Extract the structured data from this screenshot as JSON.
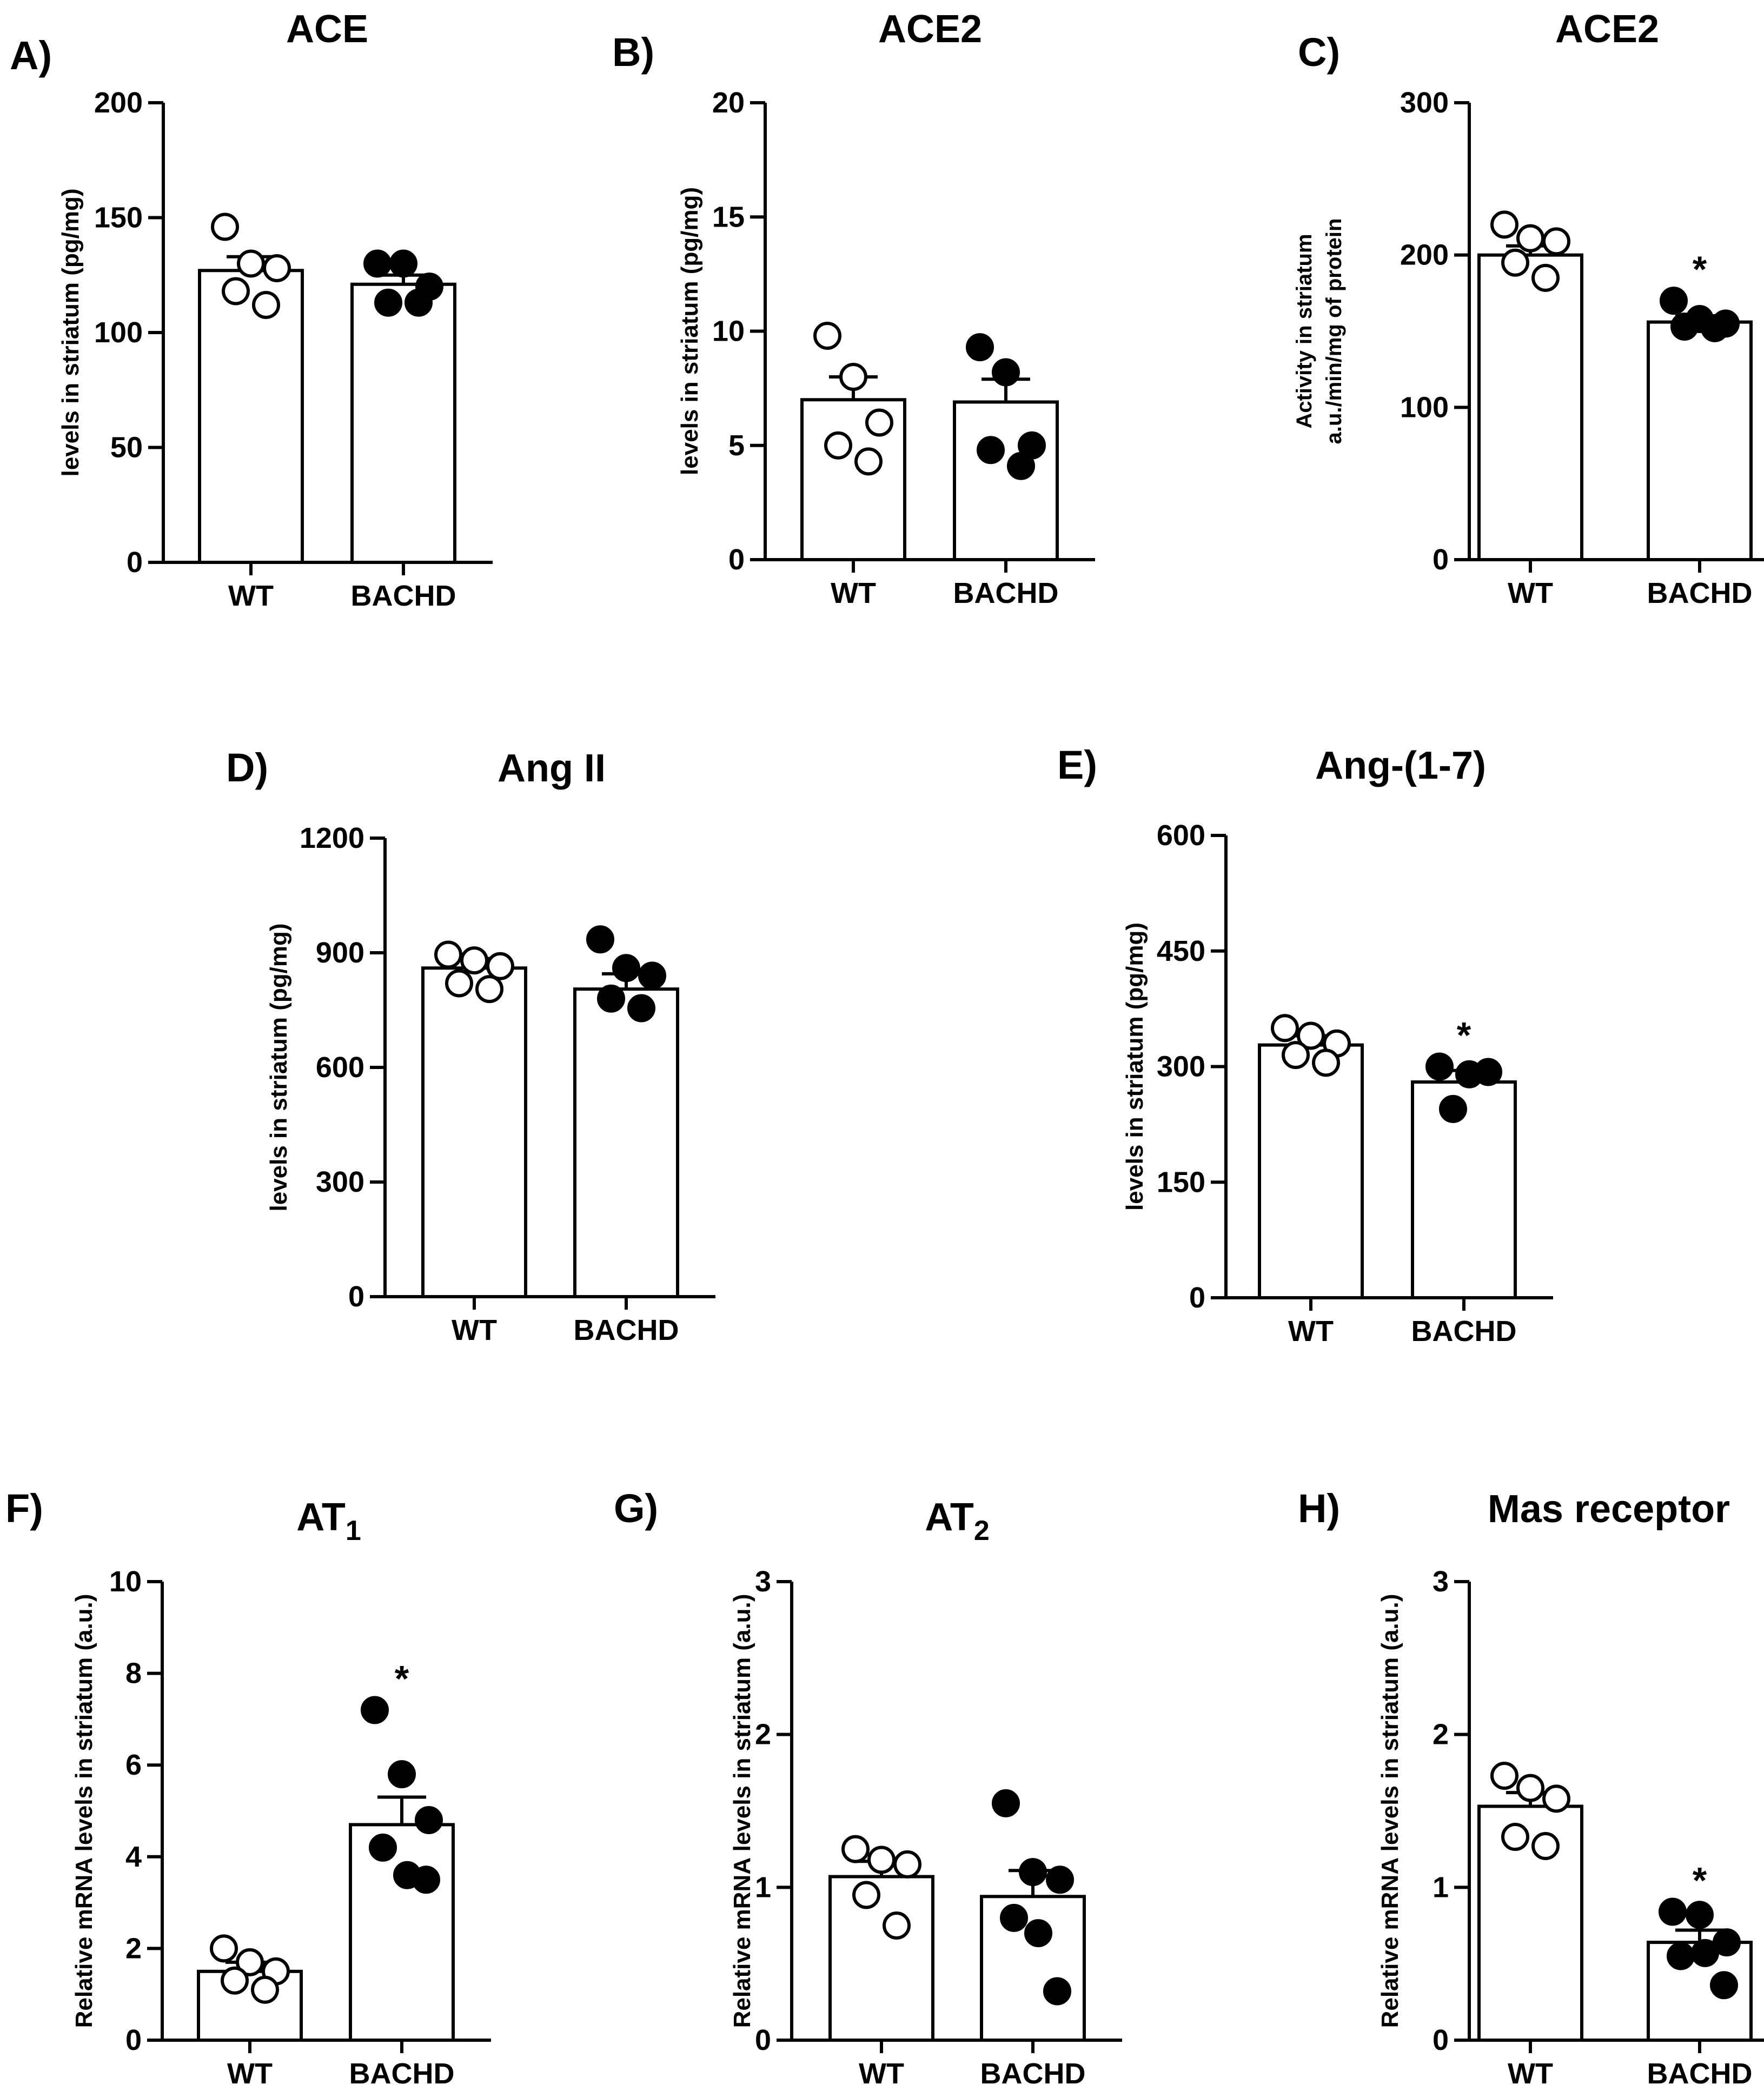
{
  "figure": {
    "description_hidden": false
  },
  "chart_data": [
    {
      "id": "A",
      "panel_label": "A)",
      "type": "bar",
      "title": "ACE",
      "title_sub": "",
      "ylabel": [
        "levels in striatum (pg/mg)"
      ],
      "categories": [
        "WT",
        "BACHD"
      ],
      "ylim": [
        0,
        200
      ],
      "yticks": [
        0,
        50,
        100,
        150,
        200
      ],
      "ytick_labels": [
        "0",
        "50",
        "100",
        "150",
        "200"
      ],
      "means": [
        127,
        121
      ],
      "sem": [
        6,
        4
      ],
      "points": [
        [
          146,
          130,
          128,
          118,
          112
        ],
        [
          130,
          130,
          120,
          113,
          113
        ]
      ],
      "significance": [
        "",
        ""
      ]
    },
    {
      "id": "B",
      "panel_label": "B)",
      "type": "bar",
      "title": "ACE2",
      "title_sub": "",
      "ylabel": [
        "levels in striatum (pg/mg)"
      ],
      "categories": [
        "WT",
        "BACHD"
      ],
      "ylim": [
        0,
        20
      ],
      "yticks": [
        0,
        5,
        10,
        15,
        20
      ],
      "ytick_labels": [
        "0",
        "5",
        "10",
        "15",
        "20"
      ],
      "means": [
        7.0,
        6.9
      ],
      "sem": [
        1.0,
        1.0
      ],
      "points": [
        [
          9.8,
          8.0,
          6.0,
          5.0,
          4.3
        ],
        [
          9.3,
          8.2,
          5.0,
          4.8,
          4.1
        ]
      ],
      "significance": [
        "",
        ""
      ]
    },
    {
      "id": "C",
      "panel_label": "C)",
      "type": "bar",
      "title": "ACE2",
      "title_sub": "",
      "ylabel": [
        "Activity in striatum",
        "a.u./min/mg of protein"
      ],
      "categories": [
        "WT",
        "BACHD"
      ],
      "ylim": [
        0,
        300
      ],
      "yticks": [
        0,
        100,
        200,
        300
      ],
      "ytick_labels": [
        "0",
        "100",
        "200",
        "300"
      ],
      "means": [
        200,
        156
      ],
      "sem": [
        6,
        4
      ],
      "points": [
        [
          220,
          211,
          209,
          195,
          185
        ],
        [
          170,
          158,
          155,
          153,
          152
        ]
      ],
      "significance": [
        "",
        "*"
      ]
    },
    {
      "id": "D",
      "panel_label": "D)",
      "type": "bar",
      "title": "Ang II",
      "title_sub": "",
      "ylabel": [
        "levels in striatum (pg/mg)"
      ],
      "categories": [
        "WT",
        "BACHD"
      ],
      "ylim": [
        0,
        1200
      ],
      "yticks": [
        0,
        300,
        600,
        900,
        1200
      ],
      "ytick_labels": [
        "0",
        "300",
        "600",
        "900",
        "1200"
      ],
      "means": [
        860,
        805
      ],
      "sem": [
        25,
        40
      ],
      "points": [
        [
          895,
          880,
          865,
          820,
          805
        ],
        [
          935,
          860,
          840,
          780,
          755
        ]
      ],
      "significance": [
        "",
        ""
      ]
    },
    {
      "id": "E",
      "panel_label": "E)",
      "type": "bar",
      "title": "Ang-(1-7)",
      "title_sub": "",
      "ylabel": [
        "levels in striatum (pg/mg)"
      ],
      "categories": [
        "WT",
        "BACHD"
      ],
      "ylim": [
        0,
        600
      ],
      "yticks": [
        0,
        150,
        300,
        450,
        600
      ],
      "ytick_labels": [
        "0",
        "150",
        "300",
        "450",
        "600"
      ],
      "means": [
        328,
        280
      ],
      "sem": [
        12,
        15
      ],
      "points": [
        [
          350,
          340,
          330,
          315,
          305
        ],
        [
          300,
          290,
          293,
          245
        ]
      ],
      "significance": [
        "",
        "*"
      ]
    },
    {
      "id": "F",
      "panel_label": "F)",
      "type": "bar",
      "title": "AT",
      "title_sub": "1",
      "ylabel": [
        "Relative mRNA levels in striatum (a.u.)"
      ],
      "categories": [
        "WT",
        "BACHD"
      ],
      "ylim": [
        0,
        10
      ],
      "yticks": [
        0,
        2,
        4,
        6,
        8,
        10
      ],
      "ytick_labels": [
        "0",
        "2",
        "4",
        "6",
        "8",
        "10"
      ],
      "means": [
        1.5,
        4.7
      ],
      "sem": [
        0.2,
        0.6
      ],
      "points": [
        [
          2.0,
          1.7,
          1.5,
          1.3,
          1.1
        ],
        [
          7.2,
          5.8,
          4.8,
          4.2,
          3.6,
          3.5
        ]
      ],
      "significance": [
        "",
        "*"
      ]
    },
    {
      "id": "G",
      "panel_label": "G)",
      "type": "bar",
      "title": "AT",
      "title_sub": "2",
      "ylabel": [
        "Relative mRNA levels in striatum (a.u.)"
      ],
      "categories": [
        "WT",
        "BACHD"
      ],
      "ylim": [
        0,
        3
      ],
      "yticks": [
        0,
        1,
        2,
        3
      ],
      "ytick_labels": [
        "0",
        "1",
        "2",
        "3"
      ],
      "means": [
        1.07,
        0.94
      ],
      "sem": [
        0.1,
        0.17
      ],
      "points": [
        [
          1.25,
          1.18,
          1.15,
          0.95,
          0.75
        ],
        [
          1.55,
          1.1,
          1.05,
          0.8,
          0.7,
          0.32
        ]
      ],
      "significance": [
        "",
        ""
      ]
    },
    {
      "id": "H",
      "panel_label": "H)",
      "type": "bar",
      "title": "Mas receptor",
      "title_sub": "",
      "ylabel": [
        "Relative mRNA levels in striatum (a.u.)"
      ],
      "categories": [
        "WT",
        "BACHD"
      ],
      "ylim": [
        0,
        3
      ],
      "yticks": [
        0,
        1,
        2,
        3
      ],
      "ytick_labels": [
        "0",
        "1",
        "2",
        "3"
      ],
      "means": [
        1.53,
        0.64
      ],
      "sem": [
        0.09,
        0.08
      ],
      "points": [
        [
          1.73,
          1.65,
          1.58,
          1.33,
          1.27
        ],
        [
          0.84,
          0.82,
          0.64,
          0.55,
          0.57,
          0.36
        ]
      ],
      "significance": [
        "",
        "*"
      ]
    }
  ]
}
